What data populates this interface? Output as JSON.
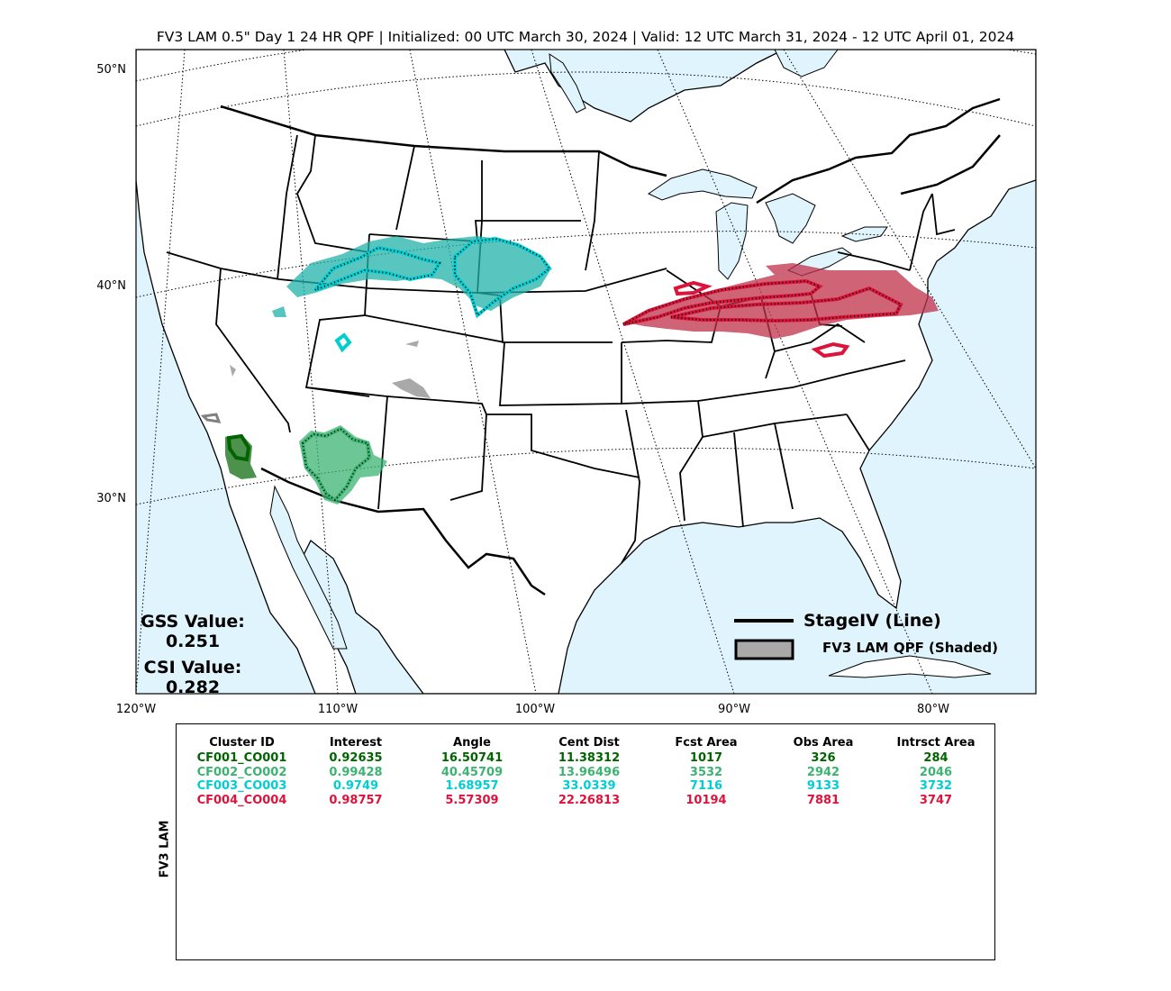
{
  "title": "FV3 LAM 0.5\" Day 1 24 HR QPF | Initialized: 00 UTC March 30, 2024 | Valid: 12 UTC March 31, 2024 - 12 UTC April 01, 2024",
  "lat_labels": [
    "50°N",
    "40°N",
    "30°N"
  ],
  "lon_labels": [
    "120°W",
    "110°W",
    "100°W",
    "90°W",
    "80°W"
  ],
  "scores": {
    "gss_label": "GSS Value:",
    "gss_value": "0.251",
    "csi_label": "CSI Value:",
    "csi_value": "0.282"
  },
  "legend": {
    "line_label": "StageIV (Line)",
    "shaded_label": "FV3 LAM QPF (Shaded)"
  },
  "colors": {
    "ocean": "#dff4fd",
    "land": "#ffffff",
    "cluster1": "#006400",
    "cluster2": "#3cb371",
    "cluster3": "#00ced1",
    "cluster4": "#dc143c",
    "unmatched": "#a9a9a9"
  },
  "table": {
    "row_label": "FV3 LAM",
    "headers": [
      "Cluster ID",
      "Interest",
      "Angle",
      "Cent Dist",
      "Fcst Area",
      "Obs Area",
      "Intrsct Area"
    ],
    "rows": [
      {
        "color": "#006400",
        "cells": [
          "CF001_CO001",
          "0.92635",
          "16.50741",
          "11.38312",
          "1017",
          "326",
          "284"
        ]
      },
      {
        "color": "#3cb371",
        "cells": [
          "CF002_CO002",
          "0.99428",
          "40.45709",
          "13.96496",
          "3532",
          "2942",
          "2046"
        ]
      },
      {
        "color": "#00ced1",
        "cells": [
          "CF003_CO003",
          "0.9749",
          "1.68957",
          "33.0339",
          "7116",
          "9133",
          "3732"
        ]
      },
      {
        "color": "#dc143c",
        "cells": [
          "CF004_CO004",
          "0.98757",
          "5.57309",
          "22.26813",
          "10194",
          "7881",
          "3747"
        ]
      }
    ]
  }
}
